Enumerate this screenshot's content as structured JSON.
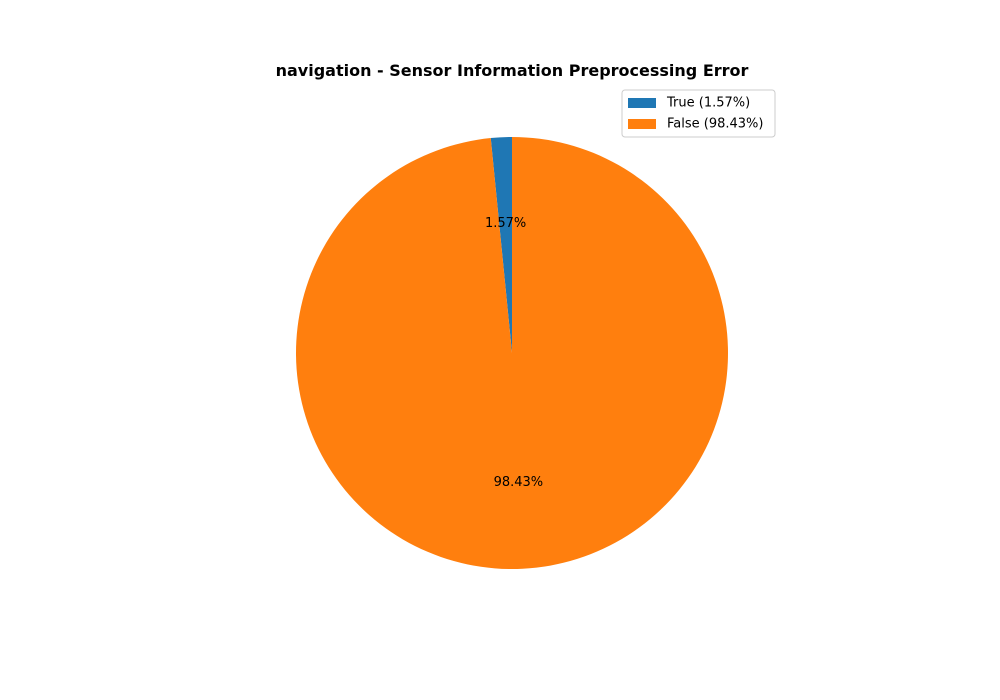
{
  "chart_data": {
    "type": "pie",
    "title": "navigation - Sensor Information Preprocessing Error",
    "slices": [
      {
        "label": "True",
        "value": 1.57,
        "pct_label": "1.57%",
        "legend": "True (1.57%)",
        "color": "#1f77b4"
      },
      {
        "label": "False",
        "value": 98.43,
        "pct_label": "98.43%",
        "legend": "False (98.43%)",
        "color": "#ff7f0e"
      }
    ],
    "start_angle_deg": 90,
    "direction": "counterclockwise",
    "legend_position": "top-right"
  }
}
